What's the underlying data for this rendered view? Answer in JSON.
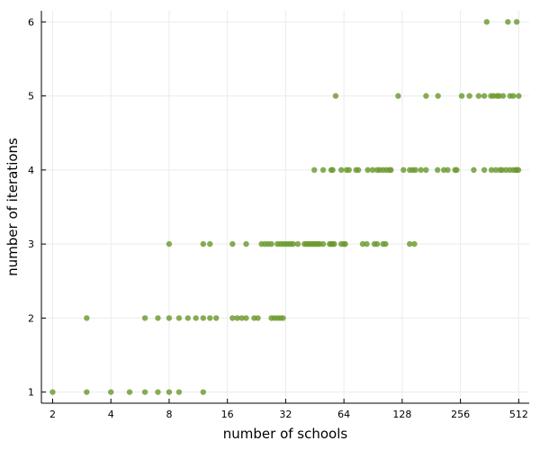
{
  "chart_data": {
    "type": "scatter",
    "xlabel": "number of schools",
    "ylabel": "number of iterations",
    "x_scale": "log2",
    "x_ticks": [
      2,
      4,
      8,
      16,
      32,
      64,
      128,
      256,
      512
    ],
    "x_tick_labels": [
      "2",
      "4",
      "8",
      "16",
      "32",
      "64",
      "128",
      "256",
      "512"
    ],
    "y_ticks": [
      1,
      2,
      3,
      4,
      5,
      6
    ],
    "y_tick_labels": [
      "1",
      "2",
      "3",
      "4",
      "5",
      "6"
    ],
    "xlim": [
      1.75,
      580
    ],
    "ylim": [
      0.85,
      6.15
    ],
    "grid": true,
    "legend": "none",
    "marker_color": "#6b9a2e",
    "points": [
      [
        2,
        1
      ],
      [
        3,
        1
      ],
      [
        4,
        1
      ],
      [
        5,
        1
      ],
      [
        6,
        1
      ],
      [
        7,
        1
      ],
      [
        8,
        1
      ],
      [
        9,
        1
      ],
      [
        12,
        1
      ],
      [
        3,
        2
      ],
      [
        6,
        2
      ],
      [
        7,
        2
      ],
      [
        8,
        2
      ],
      [
        9,
        2
      ],
      [
        10,
        2
      ],
      [
        11,
        2
      ],
      [
        12,
        2
      ],
      [
        13,
        2
      ],
      [
        14,
        2
      ],
      [
        17,
        2
      ],
      [
        18,
        2
      ],
      [
        19,
        2
      ],
      [
        20,
        2
      ],
      [
        22,
        2
      ],
      [
        23,
        2
      ],
      [
        27,
        2
      ],
      [
        28,
        2
      ],
      [
        29,
        2
      ],
      [
        30,
        2
      ],
      [
        31,
        2
      ],
      [
        8,
        3
      ],
      [
        12,
        3
      ],
      [
        13,
        3
      ],
      [
        17,
        3
      ],
      [
        20,
        3
      ],
      [
        24,
        3
      ],
      [
        25,
        3
      ],
      [
        26,
        3
      ],
      [
        27,
        3
      ],
      [
        29,
        3
      ],
      [
        30,
        3
      ],
      [
        31,
        3
      ],
      [
        32,
        3
      ],
      [
        33,
        3
      ],
      [
        34,
        3
      ],
      [
        35,
        3
      ],
      [
        37,
        3
      ],
      [
        40,
        3
      ],
      [
        41,
        3
      ],
      [
        42,
        3
      ],
      [
        43,
        3
      ],
      [
        44,
        3
      ],
      [
        45,
        3
      ],
      [
        46,
        3
      ],
      [
        47,
        3
      ],
      [
        48,
        3
      ],
      [
        50,
        3
      ],
      [
        54,
        3
      ],
      [
        55,
        3
      ],
      [
        56,
        3
      ],
      [
        57,
        3
      ],
      [
        62,
        3
      ],
      [
        64,
        3
      ],
      [
        65,
        3
      ],
      [
        80,
        3
      ],
      [
        84,
        3
      ],
      [
        92,
        3
      ],
      [
        95,
        3
      ],
      [
        102,
        3
      ],
      [
        105,
        3
      ],
      [
        140,
        3
      ],
      [
        148,
        3
      ],
      [
        45,
        4
      ],
      [
        50,
        4
      ],
      [
        55,
        4
      ],
      [
        56,
        4
      ],
      [
        62,
        4
      ],
      [
        66,
        4
      ],
      [
        68,
        4
      ],
      [
        74,
        4
      ],
      [
        76,
        4
      ],
      [
        85,
        4
      ],
      [
        90,
        4
      ],
      [
        95,
        4
      ],
      [
        98,
        4
      ],
      [
        102,
        4
      ],
      [
        106,
        4
      ],
      [
        110,
        4
      ],
      [
        112,
        4
      ],
      [
        130,
        4
      ],
      [
        140,
        4
      ],
      [
        145,
        4
      ],
      [
        150,
        4
      ],
      [
        160,
        4
      ],
      [
        170,
        4
      ],
      [
        195,
        4
      ],
      [
        210,
        4
      ],
      [
        220,
        4
      ],
      [
        240,
        4
      ],
      [
        245,
        4
      ],
      [
        300,
        4
      ],
      [
        340,
        4
      ],
      [
        370,
        4
      ],
      [
        390,
        4
      ],
      [
        410,
        4
      ],
      [
        420,
        4
      ],
      [
        440,
        4
      ],
      [
        460,
        4
      ],
      [
        480,
        4
      ],
      [
        495,
        4
      ],
      [
        500,
        4
      ],
      [
        510,
        4
      ],
      [
        58,
        5
      ],
      [
        122,
        5
      ],
      [
        170,
        5
      ],
      [
        196,
        5
      ],
      [
        260,
        5
      ],
      [
        285,
        5
      ],
      [
        318,
        5
      ],
      [
        340,
        5
      ],
      [
        368,
        5
      ],
      [
        380,
        5
      ],
      [
        396,
        5
      ],
      [
        405,
        5
      ],
      [
        425,
        5
      ],
      [
        462,
        5
      ],
      [
        480,
        5
      ],
      [
        512,
        5
      ],
      [
        350,
        6
      ],
      [
        450,
        6
      ],
      [
        500,
        6
      ]
    ]
  }
}
